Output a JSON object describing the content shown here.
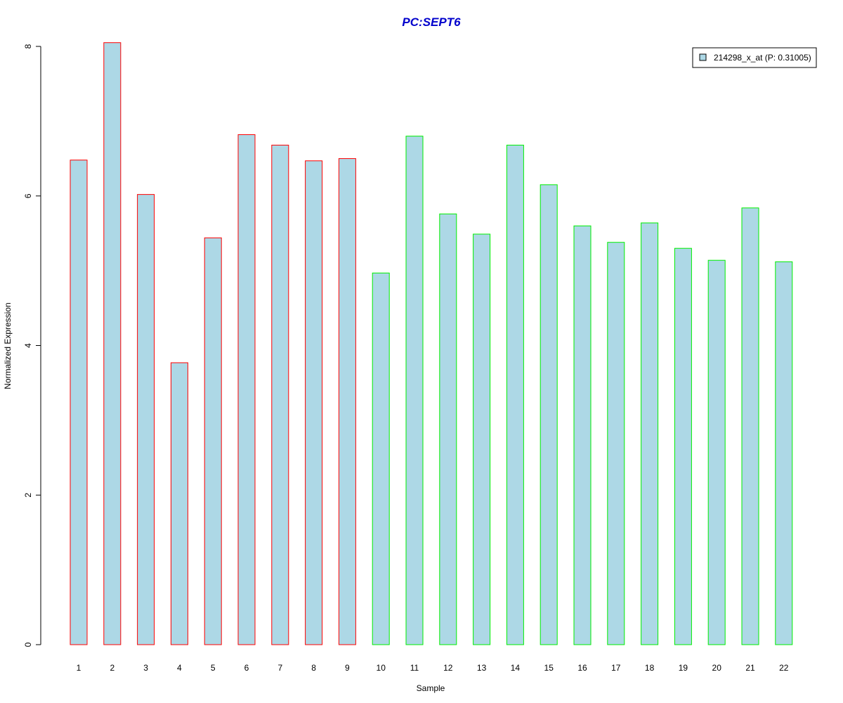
{
  "chart_data": {
    "type": "bar",
    "title": "PC:SEPT6",
    "title_color": "#0000cc",
    "xlabel": "Sample",
    "ylabel": "Normalized Expression",
    "ylim": [
      0,
      8
    ],
    "yticks": [
      0,
      2,
      4,
      6,
      8
    ],
    "grid": false,
    "legend_position": "top-right",
    "categories": [
      "1",
      "2",
      "3",
      "4",
      "5",
      "6",
      "7",
      "8",
      "9",
      "10",
      "11",
      "12",
      "13",
      "14",
      "15",
      "16",
      "17",
      "18",
      "19",
      "20",
      "21",
      "22"
    ],
    "series": [
      {
        "name": "214298_x_at (P: 0.31005)",
        "fill": "#add8e6",
        "values": [
          6.48,
          8.05,
          6.02,
          3.77,
          5.44,
          6.82,
          6.68,
          6.47,
          6.5,
          4.97,
          6.8,
          5.76,
          5.49,
          6.68,
          6.15,
          5.6,
          5.38,
          5.64,
          5.3,
          5.14,
          5.84,
          5.12
        ]
      }
    ],
    "group_colors": {
      "first": "#ff0000",
      "second": "#00ee00"
    },
    "first_group_count": 9
  }
}
